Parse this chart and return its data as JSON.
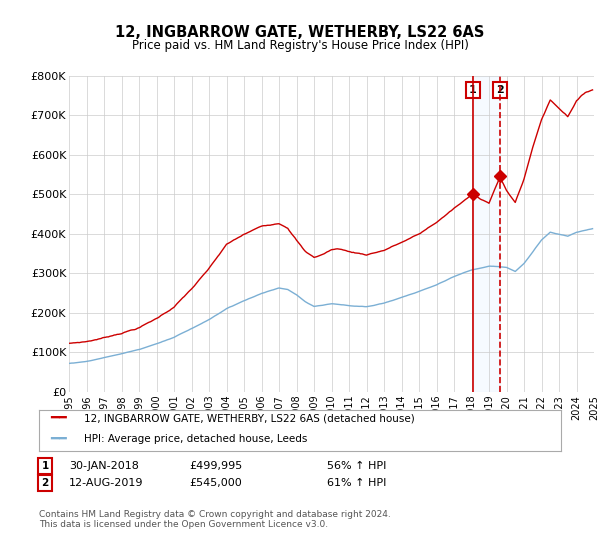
{
  "title": "12, INGBARROW GATE, WETHERBY, LS22 6AS",
  "subtitle": "Price paid vs. HM Land Registry's House Price Index (HPI)",
  "ylim": [
    0,
    800000
  ],
  "yticks": [
    0,
    100000,
    200000,
    300000,
    400000,
    500000,
    600000,
    700000,
    800000
  ],
  "ytick_labels": [
    "£0",
    "£100K",
    "£200K",
    "£300K",
    "£400K",
    "£500K",
    "£600K",
    "£700K",
    "£800K"
  ],
  "red_line_color": "#cc0000",
  "blue_line_color": "#7bafd4",
  "vline_color": "#cc0000",
  "shade_color": "#ddeeff",
  "bg_color": "#ffffff",
  "plot_bg_color": "#ffffff",
  "grid_color": "#cccccc",
  "legend_label_red": "12, INGBARROW GATE, WETHERBY, LS22 6AS (detached house)",
  "legend_label_blue": "HPI: Average price, detached house, Leeds",
  "sale1_date": "30-JAN-2018",
  "sale1_price": "£499,995",
  "sale1_hpi": "56% ↑ HPI",
  "sale2_date": "12-AUG-2019",
  "sale2_price": "£545,000",
  "sale2_hpi": "61% ↑ HPI",
  "copyright_text": "Contains HM Land Registry data © Crown copyright and database right 2024.\nThis data is licensed under the Open Government Licence v3.0.",
  "sale1_year": 2018.08,
  "sale2_year": 2019.62,
  "sale1_price_val": 499995,
  "sale2_price_val": 545000,
  "xtick_years": [
    1995,
    1996,
    1997,
    1998,
    1999,
    2000,
    2001,
    2002,
    2003,
    2004,
    2005,
    2006,
    2007,
    2008,
    2009,
    2010,
    2011,
    2012,
    2013,
    2014,
    2015,
    2016,
    2017,
    2018,
    2019,
    2020,
    2021,
    2022,
    2023,
    2024,
    2025
  ]
}
